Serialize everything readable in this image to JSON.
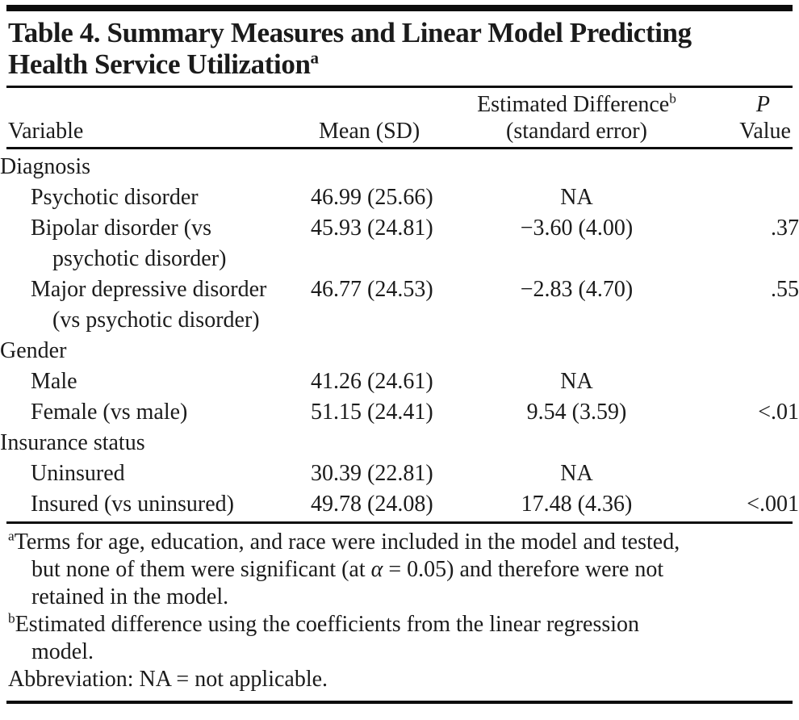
{
  "colors": {
    "background": "#ffffff",
    "text": "#1b1b1b",
    "rule": "#0d0d0d"
  },
  "title": {
    "line1": "Table 4. Summary Measures and Linear Model Predicting",
    "line2": "Health Service Utilization",
    "superscript": "a"
  },
  "header": {
    "col1": "Variable",
    "col2": "Mean (SD)",
    "col3_line1": "Estimated Difference",
    "col3_superscript": "b",
    "col3_line2": "(standard error)",
    "col4_line1": "P",
    "col4_line2": "Value"
  },
  "rows": [
    {
      "type": "group",
      "label": "Diagnosis",
      "mean": "",
      "diff": "",
      "p": ""
    },
    {
      "type": "item",
      "label": "Psychotic disorder",
      "mean": "46.99 (25.66)",
      "diff": "NA",
      "p": ""
    },
    {
      "type": "item",
      "label": "Bipolar disorder (vs psychotic disorder)",
      "mean": "45.93 (24.81)",
      "diff": "−3.60 (4.00)",
      "p": ".37"
    },
    {
      "type": "item",
      "label": "Major depressive disorder (vs psychotic disorder)",
      "mean": "46.77 (24.53)",
      "diff": "−2.83 (4.70)",
      "p": ".55"
    },
    {
      "type": "group",
      "label": "Gender",
      "mean": "",
      "diff": "",
      "p": ""
    },
    {
      "type": "item",
      "label": "Male",
      "mean": "41.26 (24.61)",
      "diff": "NA",
      "p": ""
    },
    {
      "type": "item",
      "label": "Female (vs male)",
      "mean": "51.15 (24.41)",
      "diff": "9.54 (3.59)",
      "p": "<.01"
    },
    {
      "type": "group",
      "label": "Insurance status",
      "mean": "",
      "diff": "",
      "p": ""
    },
    {
      "type": "item",
      "label": "Uninsured",
      "mean": "30.39 (22.81)",
      "diff": "NA",
      "p": ""
    },
    {
      "type": "item",
      "label": "Insured (vs uninsured)",
      "mean": "49.78 (24.08)",
      "diff": "17.48 (4.36)",
      "p": "<.001"
    }
  ],
  "footnotes": {
    "a": {
      "marker": "a",
      "pre": "Terms for age, education, and race were included in the model and tested, but none of them were significant (at ",
      "alpha": "α",
      "post": " = 0.05) and therefore were not retained in the model."
    },
    "b": {
      "marker": "b",
      "text": "Estimated difference using the coefficients from the linear regression model."
    },
    "abbreviation": "Abbreviation: NA = not applicable."
  }
}
